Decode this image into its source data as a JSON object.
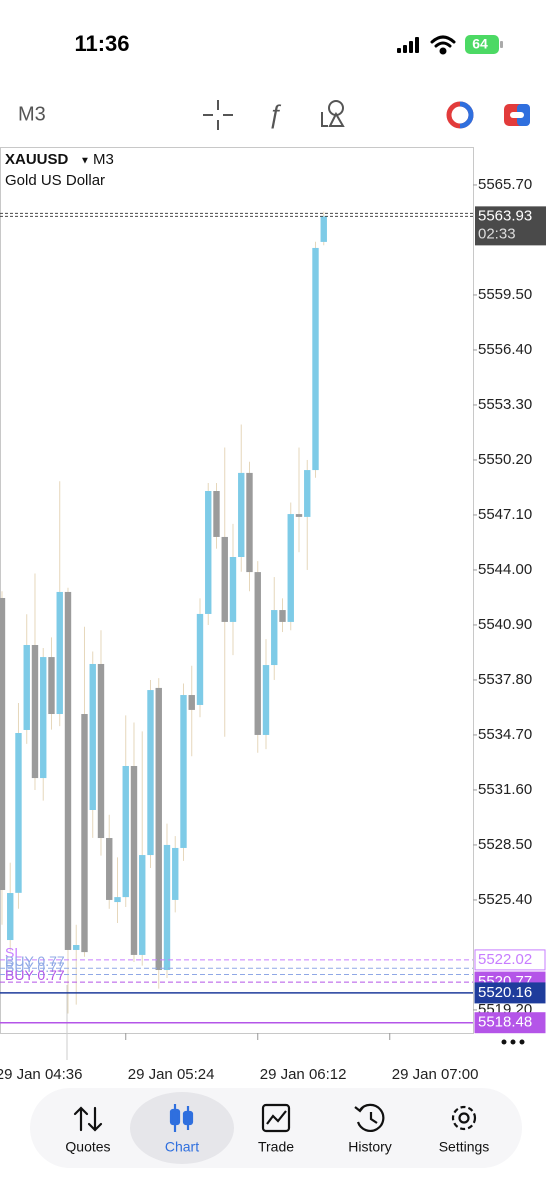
{
  "status_bar": {
    "time": "11:36",
    "battery": "64"
  },
  "toolbar": {
    "timeframe": "M3"
  },
  "chart_data": {
    "type": "candlestick",
    "symbol": "XAUUSD",
    "timeframe": "M3",
    "description": "Gold US Dollar",
    "up_color": "#7ecbe7",
    "down_color": "#9b9b9b",
    "wick_color": "#e6d7bb",
    "open": [
      5542.42,
      5523.14,
      5525.8,
      5534.98,
      5539.77,
      5532.27,
      5539.09,
      5535.88,
      5542.76,
      5522.58,
      5535.88,
      5530.47,
      5538.7,
      5528.89,
      5525.28,
      5525.56,
      5532.95,
      5522.3,
      5527.93,
      5537.35,
      5521.45,
      5525.4,
      5528.33,
      5536.95,
      5536.39,
      5541.52,
      5548.45,
      5545.86,
      5541.07,
      5544.73,
      5549.47,
      5543.88,
      5534.7,
      5538.64,
      5541.74,
      5541.07,
      5547.15,
      5546.99,
      5549.63,
      5562.49
    ],
    "high": [
      5542.8,
      5527.5,
      5536.5,
      5541.5,
      5543.8,
      5539.6,
      5540.2,
      5549.0,
      5543.0,
      5524.0,
      5540.8,
      5539.4,
      5540.6,
      5530.2,
      5527.8,
      5535.8,
      5535.4,
      5534.9,
      5537.8,
      5537.9,
      5529.7,
      5529.0,
      5537.6,
      5538.6,
      5542.4,
      5548.9,
      5548.9,
      5550.9,
      5546.6,
      5552.2,
      5550.1,
      5544.5,
      5540.1,
      5543.6,
      5542.4,
      5547.8,
      5550.9,
      5550.2,
      5562.5,
      5564.2
    ],
    "low": [
      5524.0,
      5522.5,
      5524.9,
      5534.2,
      5531.6,
      5531.0,
      5535.0,
      5535.2,
      5519.0,
      5519.5,
      5522.2,
      5528.9,
      5527.9,
      5524.9,
      5524.1,
      5525.0,
      5521.9,
      5521.7,
      5527.2,
      5520.4,
      5521.0,
      5524.7,
      5527.6,
      5533.5,
      5535.7,
      5540.9,
      5545.2,
      5534.6,
      5539.2,
      5543.9,
      5542.8,
      5533.7,
      5533.9,
      5537.8,
      5540.5,
      5540.6,
      5545.0,
      5544.0,
      5549.2,
      5562.3
    ],
    "close": [
      5525.96,
      5525.79,
      5534.81,
      5539.77,
      5532.27,
      5539.09,
      5535.88,
      5542.76,
      5522.58,
      5522.86,
      5522.46,
      5538.7,
      5528.89,
      5525.4,
      5525.56,
      5532.95,
      5522.3,
      5527.93,
      5537.23,
      5521.45,
      5528.5,
      5528.33,
      5536.95,
      5536.11,
      5541.52,
      5548.45,
      5545.86,
      5541.07,
      5544.73,
      5549.47,
      5543.88,
      5534.7,
      5538.64,
      5541.74,
      5541.07,
      5547.15,
      5546.99,
      5549.63,
      5562.15,
      5563.93
    ],
    "xlim": [
      -0.24,
      57.09
    ],
    "xticks": [
      {
        "value": -1,
        "label": "29 Jan 04:36"
      },
      {
        "value": 15,
        "label": "29 Jan 05:24"
      },
      {
        "value": 31,
        "label": "29 Jan 06:12"
      },
      {
        "value": 47,
        "label": "29 Jan 07:00"
      }
    ],
    "ylim": [
      5517.9,
      5567.84
    ],
    "yticks": [
      {
        "value": 5565.7,
        "label": "5565.70"
      },
      {
        "value": 5559.5,
        "label": "5559.50"
      },
      {
        "value": 5556.4,
        "label": "5556.40"
      },
      {
        "value": 5553.3,
        "label": "5553.30"
      },
      {
        "value": 5550.2,
        "label": "5550.20"
      },
      {
        "value": 5547.1,
        "label": "5547.10"
      },
      {
        "value": 5544,
        "label": "5544.00"
      },
      {
        "value": 5540.9,
        "label": "5540.90"
      },
      {
        "value": 5537.8,
        "label": "5537.80"
      },
      {
        "value": 5534.7,
        "label": "5534.70"
      },
      {
        "value": 5531.6,
        "label": "5531.60"
      },
      {
        "value": 5528.5,
        "label": "5528.50"
      },
      {
        "value": 5525.4,
        "label": "5525.40"
      },
      {
        "value": 5519.2,
        "label": "5519.20"
      }
    ],
    "last": {
      "price": 5563.93,
      "timer": "02:33",
      "color": "#4a4a4a"
    },
    "levels": [
      {
        "name": "SL",
        "value": 5522.02,
        "color": "#c77dff",
        "style": "dashed",
        "tag": "outline"
      },
      {
        "name": "BUY 0.77",
        "value": 5521.55,
        "color": "#8fa8e6",
        "style": "dashed",
        "tag": "none"
      },
      {
        "name": "BUY 0.77",
        "value": 5521.2,
        "color": "#8fa8e6",
        "style": "dashed",
        "tag": "none"
      },
      {
        "name": "BUY 0.77",
        "value": 5520.77,
        "color": "#b455e8",
        "style": "dashed",
        "tag": "filled"
      },
      {
        "value": 5520.16,
        "color": "#1f3c9c",
        "style": "solid",
        "tag": "filled"
      },
      {
        "value": 5518.48,
        "color": "#b455e8",
        "style": "solid",
        "tag": "filled"
      }
    ]
  },
  "nav": {
    "items": [
      "Quotes",
      "Chart",
      "Trade",
      "History",
      "Settings"
    ],
    "active": 1
  }
}
